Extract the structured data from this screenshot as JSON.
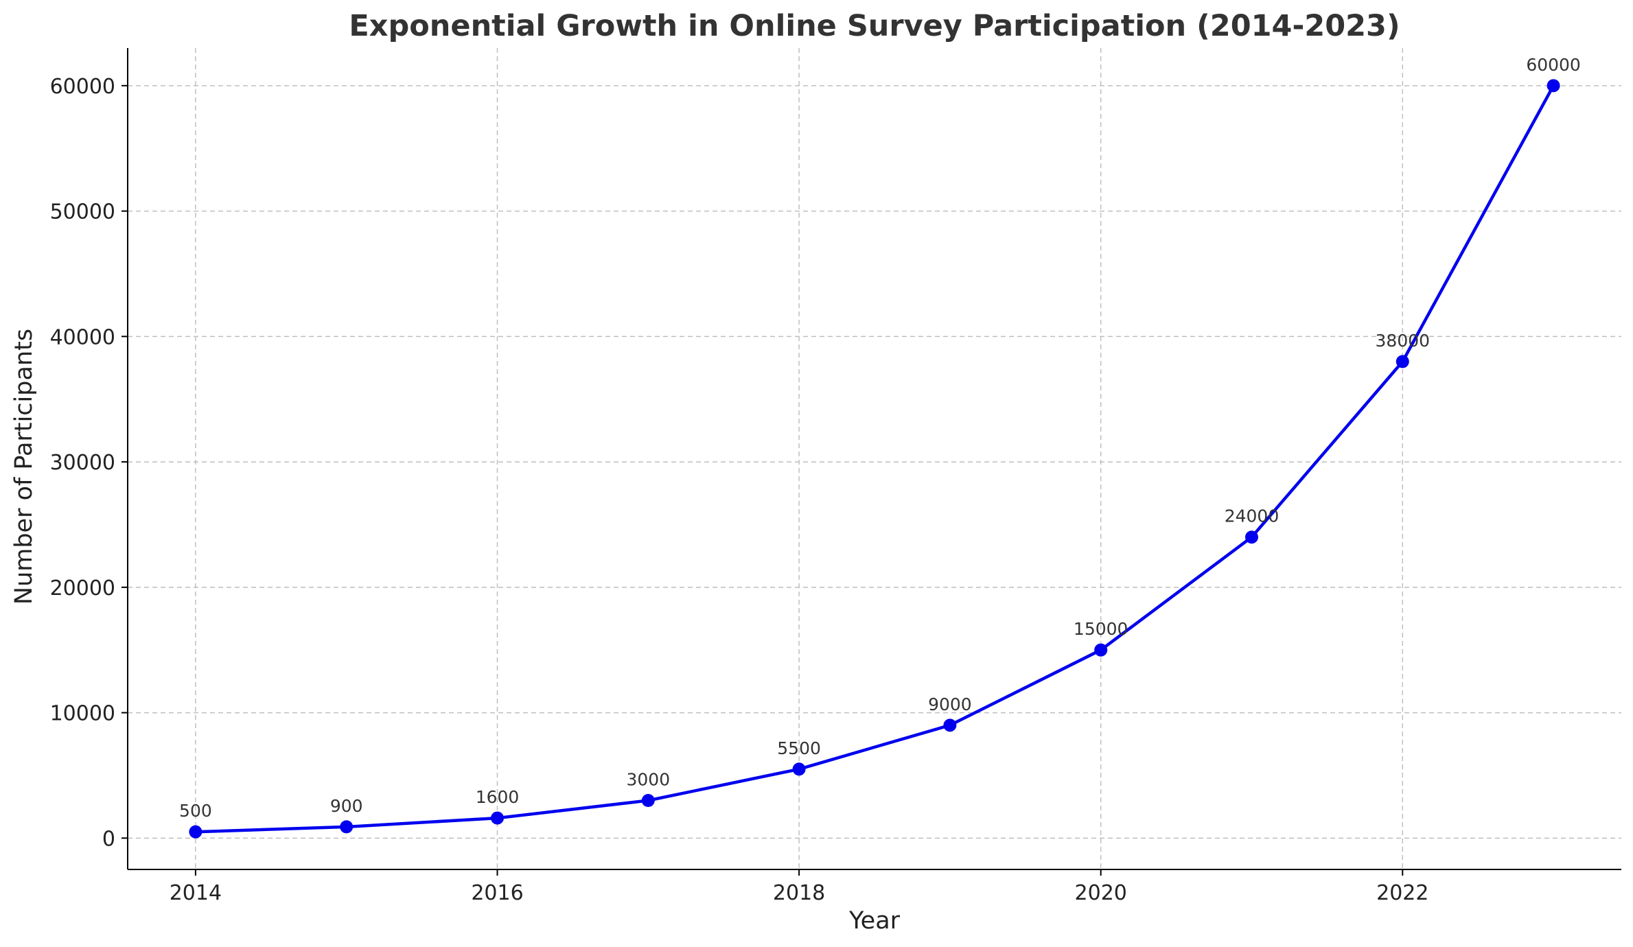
{
  "chart_data": {
    "type": "line",
    "title": "Exponential Growth in Online Survey Participation (2014-2023)",
    "xlabel": "Year",
    "ylabel": "Number of Participants",
    "xlim": [
      2013.55,
      2023.45
    ],
    "ylim": [
      -2500,
      63000
    ],
    "x_ticks": [
      2014,
      2016,
      2018,
      2020,
      2022
    ],
    "y_ticks": [
      0,
      10000,
      20000,
      30000,
      40000,
      50000,
      60000
    ],
    "grid": true,
    "series": [
      {
        "color": "#0000ee",
        "marker": "circle",
        "x": [
          2014,
          2015,
          2016,
          2017,
          2018,
          2019,
          2020,
          2021,
          2022,
          2023
        ],
        "values": [
          500,
          900,
          1600,
          3000,
          5500,
          9000,
          15000,
          24000,
          38000,
          60000
        ],
        "data_labels": [
          "500",
          "900",
          "1600",
          "3000",
          "5500",
          "9000",
          "15000",
          "24000",
          "38000",
          "60000"
        ]
      }
    ]
  }
}
